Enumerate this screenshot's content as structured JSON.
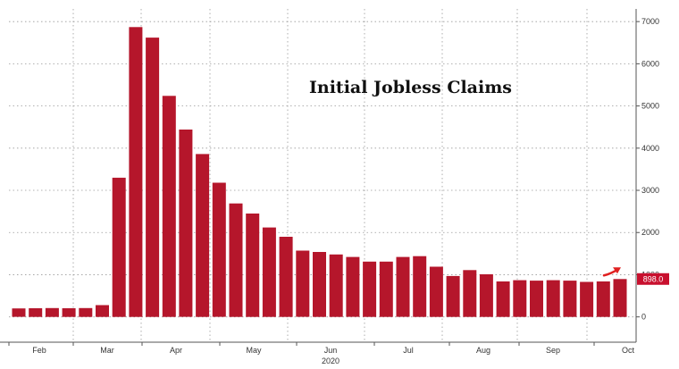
{
  "chart_data": {
    "type": "bar",
    "title": "Initial Jobless Claims",
    "year_label": "2020",
    "x_month_labels": [
      "Feb",
      "Mar",
      "Apr",
      "May",
      "Jun",
      "Jul",
      "Aug",
      "Sep",
      "Oct"
    ],
    "y_ticks": [
      0,
      1000,
      2000,
      3000,
      4000,
      5000,
      6000,
      7000
    ],
    "ylim": [
      -600,
      7300
    ],
    "grid": true,
    "y_axis_side": "right",
    "last_value_label": "898.0",
    "values": [
      200,
      205,
      210,
      205,
      210,
      280,
      3300,
      6870,
      6620,
      5240,
      4440,
      3860,
      3180,
      2690,
      2450,
      2120,
      1900,
      1570,
      1540,
      1480,
      1420,
      1310,
      1310,
      1420,
      1440,
      1190,
      970,
      1110,
      1010,
      840,
      870,
      860,
      870,
      860,
      830,
      840,
      898
    ],
    "colors": {
      "bar": "#b5162b",
      "grid": "#999999",
      "axis": "#555555",
      "badge": "#c8102e",
      "arrow": "#e02020"
    }
  }
}
